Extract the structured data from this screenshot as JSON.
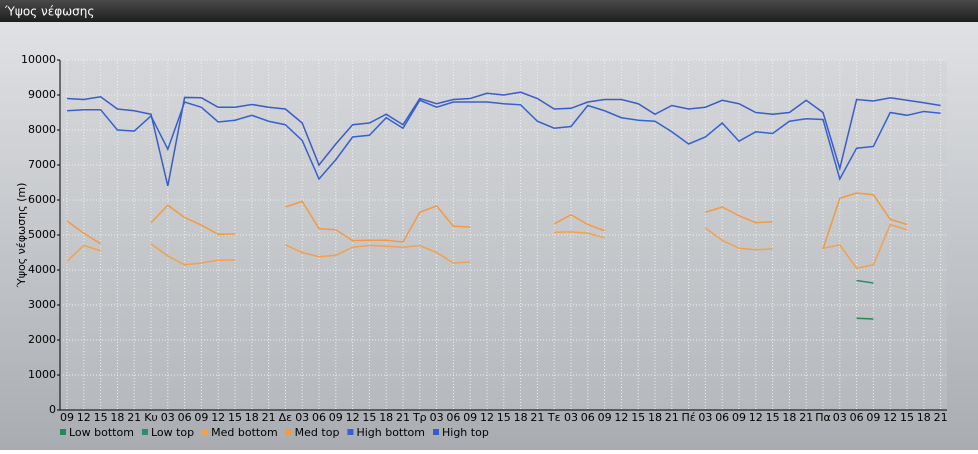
{
  "chart_data": {
    "type": "line",
    "title": "Ύψος νέφωσης",
    "y_label": "Ύψος νέφωσης (m)",
    "categories": [
      "09",
      "12",
      "15",
      "18",
      "21",
      "Κυ",
      "03",
      "06",
      "09",
      "12",
      "15",
      "18",
      "21",
      "Δε",
      "03",
      "06",
      "09",
      "12",
      "15",
      "18",
      "21",
      "Τρ",
      "03",
      "06",
      "09",
      "12",
      "15",
      "18",
      "21",
      "Τε",
      "03",
      "06",
      "09",
      "12",
      "15",
      "18",
      "21",
      "Πέ",
      "03",
      "06",
      "09",
      "12",
      "15",
      "18",
      "21",
      "Πα",
      "03",
      "06",
      "09",
      "12",
      "15",
      "18",
      "21"
    ],
    "series": [
      {
        "name": "Low bottom",
        "color": "#1f8a55",
        "values": [
          null,
          null,
          null,
          null,
          null,
          null,
          null,
          null,
          null,
          null,
          null,
          null,
          null,
          null,
          null,
          null,
          null,
          null,
          null,
          null,
          null,
          null,
          null,
          null,
          null,
          null,
          null,
          null,
          null,
          null,
          null,
          null,
          null,
          null,
          null,
          null,
          null,
          null,
          null,
          null,
          null,
          null,
          null,
          null,
          null,
          null,
          null,
          2620,
          2600,
          null,
          null,
          null,
          null
        ]
      },
      {
        "name": "Low top",
        "color": "#2e8a70",
        "values": [
          null,
          null,
          null,
          null,
          null,
          null,
          null,
          null,
          null,
          null,
          null,
          null,
          null,
          null,
          null,
          null,
          null,
          null,
          null,
          null,
          null,
          null,
          null,
          null,
          null,
          null,
          null,
          null,
          null,
          null,
          null,
          null,
          null,
          null,
          null,
          null,
          null,
          null,
          null,
          null,
          null,
          null,
          null,
          null,
          null,
          null,
          null,
          3700,
          3630,
          null,
          null,
          null,
          null
        ]
      },
      {
        "name": "Med bottom",
        "color": "#f0a24e",
        "values": [
          4250,
          4700,
          4550,
          null,
          null,
          4750,
          4400,
          4150,
          4200,
          4280,
          4290,
          null,
          null,
          4720,
          4500,
          4380,
          4420,
          4650,
          4700,
          4680,
          4650,
          4700,
          4500,
          4200,
          4230,
          null,
          null,
          null,
          null,
          5080,
          5090,
          5050,
          4920,
          null,
          null,
          null,
          null,
          null,
          5200,
          4850,
          4620,
          4580,
          4600,
          null,
          null,
          4620,
          4720,
          4050,
          4150,
          5300,
          5150,
          null,
          null
        ]
      },
      {
        "name": "Med top",
        "color": "#f39a40",
        "values": [
          5400,
          5050,
          4750,
          null,
          null,
          5350,
          5850,
          5500,
          5280,
          5020,
          5030,
          null,
          null,
          5800,
          5960,
          5180,
          5150,
          4840,
          4850,
          4850,
          4800,
          5650,
          5830,
          5250,
          5230,
          null,
          null,
          null,
          null,
          5320,
          5580,
          5300,
          5120,
          null,
          null,
          null,
          null,
          null,
          5650,
          5800,
          5550,
          5350,
          5380,
          null,
          null,
          4600,
          6050,
          6200,
          6150,
          5450,
          5300,
          null,
          null
        ]
      },
      {
        "name": "High bottom",
        "color": "#3560d0",
        "values": [
          8550,
          8580,
          8580,
          8000,
          7970,
          8400,
          7450,
          8800,
          8650,
          8230,
          8280,
          8420,
          8250,
          8150,
          7700,
          6600,
          7150,
          7800,
          7850,
          8350,
          8050,
          8850,
          8650,
          8800,
          8800,
          8800,
          8750,
          8720,
          8250,
          8050,
          8100,
          8700,
          8550,
          8350,
          8280,
          8250,
          7950,
          7600,
          7800,
          8200,
          7680,
          7950,
          7900,
          8250,
          8320,
          8300,
          6600,
          7480,
          7530,
          8500,
          8420,
          8530,
          8480
        ]
      },
      {
        "name": "High top",
        "color": "#3a5cc8",
        "values": [
          8900,
          8870,
          8950,
          8600,
          8550,
          8450,
          6400,
          8930,
          8920,
          8650,
          8650,
          8730,
          8650,
          8600,
          8200,
          7000,
          7600,
          8150,
          8200,
          8450,
          8150,
          8900,
          8750,
          8870,
          8900,
          9050,
          9000,
          9080,
          8900,
          8600,
          8620,
          8800,
          8870,
          8870,
          8750,
          8450,
          8700,
          8600,
          8650,
          8850,
          8750,
          8500,
          8450,
          8500,
          8850,
          8500,
          6900,
          8870,
          8830,
          8920,
          8850,
          8780,
          8700
        ]
      }
    ],
    "ylim": [
      0,
      10000
    ],
    "yticks": [
      0,
      1000,
      2000,
      3000,
      4000,
      5000,
      6000,
      7000,
      8000,
      9000,
      10000
    ],
    "grid": true,
    "legend": "bottom-left"
  }
}
